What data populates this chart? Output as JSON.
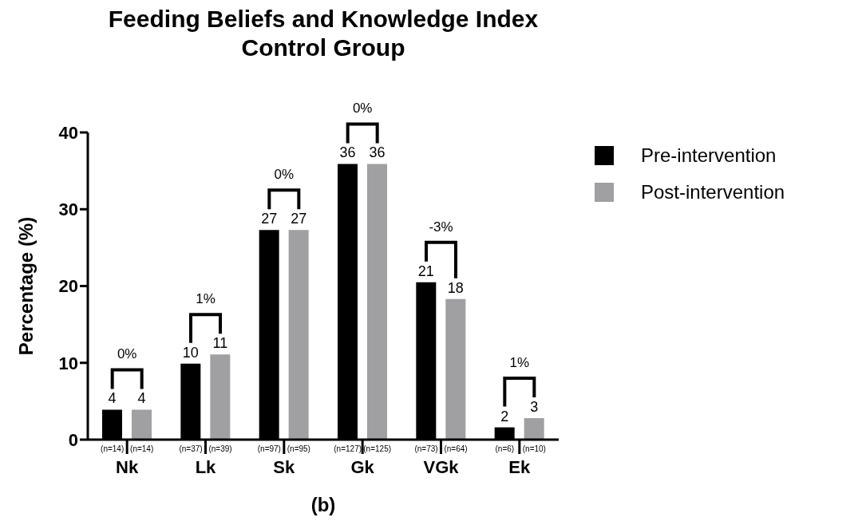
{
  "chart_data": {
    "type": "bar",
    "title": "Feeding Beliefs and Knowledge Index",
    "subtitle": "Control Group",
    "ylabel": "Percentage (%)",
    "categories": [
      "Nk",
      "Lk",
      "Sk",
      "Gk",
      "VGk",
      "Ek"
    ],
    "series": [
      {
        "name": "Pre-intervention",
        "color": "#000000",
        "values": [
          3.9,
          9.9,
          27.3,
          35.9,
          20.5,
          1.6
        ],
        "value_labels": [
          "4",
          "10",
          "27",
          "36",
          "21",
          "2"
        ]
      },
      {
        "name": "Post-intervention",
        "color": "#a0a0a2",
        "values": [
          3.9,
          11.1,
          27.3,
          35.9,
          18.3,
          2.8
        ],
        "value_labels": [
          "4",
          "11",
          "27",
          "36",
          "18",
          "3"
        ]
      }
    ],
    "ylim": [
      0,
      40
    ],
    "yticks": [
      0,
      10,
      20,
      30,
      40
    ],
    "grid": false,
    "legend": "top right",
    "annotations": [
      "0%",
      "1%",
      "0%",
      "0%",
      "-3%",
      "1%",
      "(n=14)",
      "(n=14)",
      "(n=37)",
      "(n=39)",
      "(n=97)",
      "(n=95)",
      "(n=127)",
      "(n=125)",
      "(n=73)",
      "(n=64)",
      "(n=6)",
      "(n=10)",
      "(b)"
    ]
  }
}
